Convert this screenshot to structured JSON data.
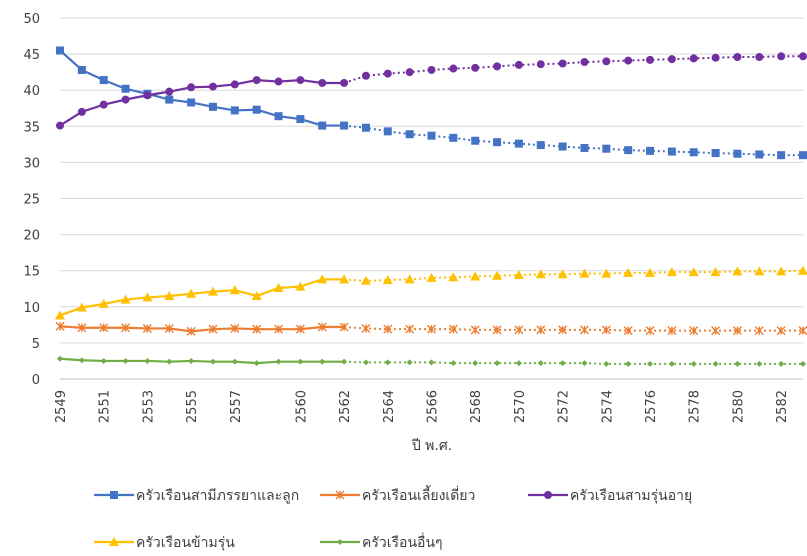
{
  "chart_data": {
    "type": "line",
    "xlabel": "ปี พ.ศ.",
    "ylabel": "",
    "ylim": [
      0,
      50
    ],
    "yticks": [
      0,
      5,
      10,
      15,
      20,
      25,
      30,
      35,
      40,
      45,
      50
    ],
    "grid": true,
    "legend_position": "bottom",
    "x": [
      2549,
      2550,
      2551,
      2552,
      2553,
      2554,
      2555,
      2556,
      2557,
      2558,
      2559,
      2560,
      2561,
      2562,
      2563,
      2564,
      2565,
      2566,
      2567,
      2568,
      2569,
      2570,
      2571,
      2572,
      2573,
      2574,
      2575,
      2576,
      2577,
      2578,
      2579,
      2580,
      2581,
      2582,
      2583
    ],
    "x_tick_labels": [
      "2549",
      "2551",
      "2553",
      "2555",
      "2557",
      "2560",
      "2562",
      "2564",
      "2566",
      "2568",
      "2570",
      "2572",
      "2574",
      "2576",
      "2578",
      "2580",
      "2582"
    ],
    "projection_start": 2562,
    "series": [
      {
        "name": "ครัวเรือนสามีภรรยาและลูก",
        "color": "#4472C4",
        "marker": "square",
        "values": [
          45.5,
          42.8,
          41.4,
          40.2,
          39.5,
          38.7,
          38.3,
          37.7,
          37.2,
          37.3,
          36.4,
          36.0,
          35.1,
          35.1,
          34.8,
          34.3,
          33.9,
          33.7,
          33.4,
          33.0,
          32.8,
          32.6,
          32.4,
          32.2,
          32.0,
          31.9,
          31.7,
          31.6,
          31.5,
          31.4,
          31.3,
          31.2,
          31.1,
          31.0,
          31.0
        ]
      },
      {
        "name": "ครัวเรือนเลี้ยงเดี่ยว",
        "color": "#ED7D31",
        "marker": "asterisk",
        "values": [
          7.3,
          7.1,
          7.1,
          7.1,
          7.0,
          7.0,
          6.6,
          6.9,
          7.0,
          6.9,
          6.9,
          6.9,
          7.2,
          7.2,
          7.0,
          6.9,
          6.9,
          6.9,
          6.9,
          6.8,
          6.8,
          6.8,
          6.8,
          6.8,
          6.8,
          6.8,
          6.7,
          6.7,
          6.7,
          6.7,
          6.7,
          6.7,
          6.7,
          6.7,
          6.7
        ]
      },
      {
        "name": "ครัวเรือนสามรุ่นอายุ",
        "color": "#7030A0",
        "marker": "circle",
        "values": [
          35.1,
          37.0,
          38.0,
          38.7,
          39.3,
          39.8,
          40.4,
          40.5,
          40.8,
          41.4,
          41.2,
          41.4,
          41.0,
          41.0,
          42.0,
          42.3,
          42.5,
          42.8,
          43.0,
          43.1,
          43.3,
          43.5,
          43.6,
          43.7,
          43.9,
          44.0,
          44.1,
          44.2,
          44.3,
          44.4,
          44.5,
          44.6,
          44.6,
          44.7,
          44.7
        ]
      },
      {
        "name": "ครัวเรือนข้ามรุ่น",
        "color": "#FFC000",
        "marker": "triangle",
        "values": [
          8.8,
          9.9,
          10.4,
          11.0,
          11.3,
          11.5,
          11.8,
          12.1,
          12.3,
          11.5,
          12.6,
          12.8,
          13.8,
          13.8,
          13.6,
          13.7,
          13.8,
          14.0,
          14.1,
          14.2,
          14.3,
          14.4,
          14.5,
          14.5,
          14.6,
          14.6,
          14.7,
          14.7,
          14.8,
          14.8,
          14.8,
          14.9,
          14.9,
          14.9,
          15.0
        ]
      },
      {
        "name": "ครัวเรือนอื่นๆ",
        "color": "#70AD47",
        "marker": "diamond",
        "values": [
          2.8,
          2.6,
          2.5,
          2.5,
          2.5,
          2.4,
          2.5,
          2.4,
          2.4,
          2.2,
          2.4,
          2.4,
          2.4,
          2.4,
          2.3,
          2.3,
          2.3,
          2.3,
          2.2,
          2.2,
          2.2,
          2.2,
          2.2,
          2.2,
          2.2,
          2.1,
          2.1,
          2.1,
          2.1,
          2.1,
          2.1,
          2.1,
          2.1,
          2.1,
          2.1
        ]
      }
    ]
  }
}
